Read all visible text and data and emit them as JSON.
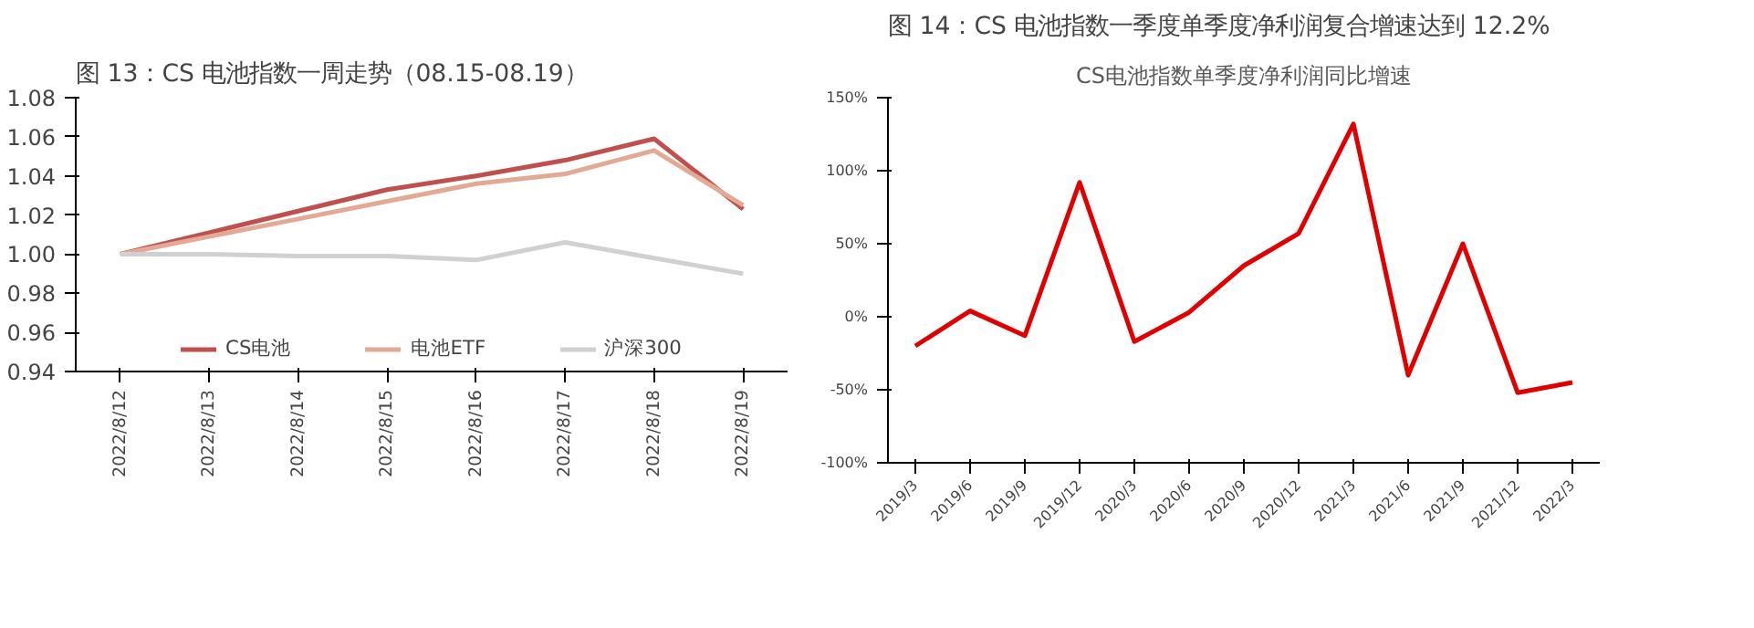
{
  "chart_data": [
    {
      "type": "line",
      "title": "图 13：CS 电池指数一周走势（08.15-08.19）",
      "categories": [
        "2022/8/12",
        "2022/8/13",
        "2022/8/14",
        "2022/8/15",
        "2022/8/16",
        "2022/8/17",
        "2022/8/18",
        "2022/8/19"
      ],
      "series": [
        {
          "name": "CS电池",
          "color": "#c0504d",
          "values": [
            1.0,
            1.011,
            1.022,
            1.033,
            1.04,
            1.048,
            1.059,
            1.023
          ]
        },
        {
          "name": "电池ETF",
          "color": "#e2a994",
          "values": [
            1.0,
            1.009,
            1.018,
            1.027,
            1.036,
            1.041,
            1.053,
            1.025
          ]
        },
        {
          "name": "沪深300",
          "color": "#d0d0d0",
          "values": [
            1.0,
            1.0,
            0.999,
            0.999,
            0.997,
            1.006,
            0.998,
            0.99
          ]
        }
      ],
      "ylim": [
        0.94,
        1.08
      ],
      "yticks": [
        {
          "value": 0.94,
          "label": "0.94"
        },
        {
          "value": 0.96,
          "label": "0.96"
        },
        {
          "value": 0.98,
          "label": "0.98"
        },
        {
          "value": 1.0,
          "label": "1.00"
        },
        {
          "value": 1.02,
          "label": "1.02"
        },
        {
          "value": 1.04,
          "label": "1.04"
        },
        {
          "value": 1.06,
          "label": "1.06"
        },
        {
          "value": 1.08,
          "label": "1.08"
        }
      ],
      "grid": false,
      "legend": "bottom"
    },
    {
      "type": "line",
      "title": "图 14：CS 电池指数一季度单季度净利润复合增速达到 12.2%",
      "subtitle": "CS电池指数单季度净利润同比增速",
      "categories": [
        "2019/3",
        "2019/6",
        "2019/9",
        "2019/12",
        "2020/3",
        "2020/6",
        "2020/9",
        "2020/12",
        "2021/3",
        "2021/6",
        "2021/9",
        "2021/12",
        "2022/3"
      ],
      "series": [
        {
          "color": "#e00000",
          "values": [
            -20,
            4,
            -13,
            92,
            -17,
            3,
            35,
            57,
            132,
            -40,
            50,
            -52,
            -45
          ]
        }
      ],
      "ylim": [
        -100,
        150
      ],
      "yticks": [
        {
          "value": -100,
          "label": "-100%"
        },
        {
          "value": -50,
          "label": "-50%"
        },
        {
          "value": 0,
          "label": "0%"
        },
        {
          "value": 50,
          "label": "50%"
        },
        {
          "value": 100,
          "label": "100%"
        },
        {
          "value": 150,
          "label": "150%"
        }
      ],
      "grid": false,
      "legend": false
    }
  ]
}
